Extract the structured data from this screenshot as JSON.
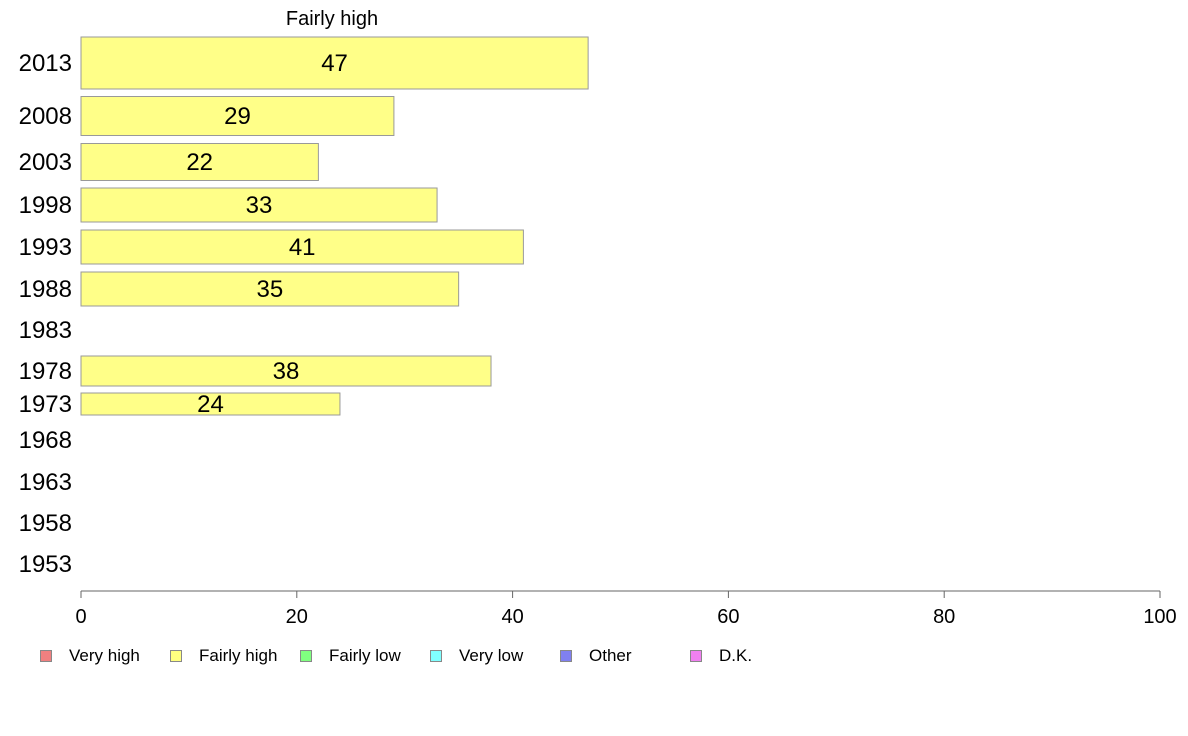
{
  "chart_data": {
    "type": "bar",
    "orientation": "horizontal",
    "title": "Fairly high",
    "xlabel": "",
    "ylabel": "",
    "xlim": [
      0,
      100
    ],
    "x_ticks": [
      0,
      20,
      40,
      60,
      80,
      100
    ],
    "categories": [
      "2013",
      "2008",
      "2003",
      "1998",
      "1993",
      "1988",
      "1983",
      "1978",
      "1973",
      "1968",
      "1963",
      "1958",
      "1953"
    ],
    "series": [
      {
        "name": "Fairly high",
        "color": "#ffff88",
        "values": [
          47,
          29,
          22,
          33,
          41,
          35,
          null,
          38,
          24,
          null,
          null,
          null,
          null
        ]
      }
    ],
    "legend_position": "bottom",
    "legend": [
      {
        "label": "Very high",
        "color": "#f08080"
      },
      {
        "label": "Fairly high",
        "color": "#ffff80"
      },
      {
        "label": "Fairly low",
        "color": "#80ff80"
      },
      {
        "label": "Very low",
        "color": "#80ffff"
      },
      {
        "label": "Other",
        "color": "#8080f0"
      },
      {
        "label": "D.K.",
        "color": "#f080f0"
      }
    ],
    "grid": false
  }
}
